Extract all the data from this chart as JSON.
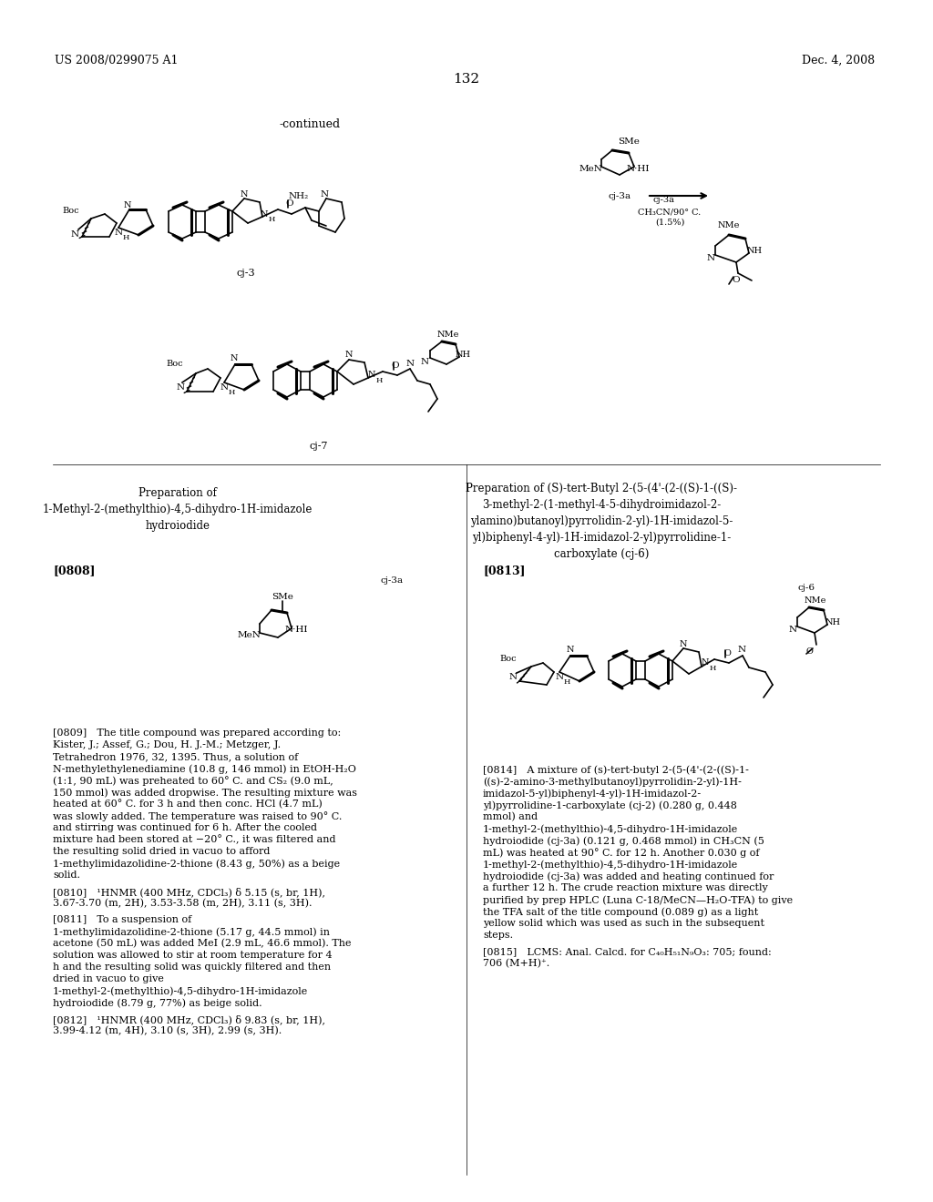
{
  "page_number": "132",
  "patent_number": "US 2008/0299075 A1",
  "patent_date": "Dec. 4, 2008",
  "background_color": "#ffffff",
  "text_color": "#000000",
  "continued_label": "-continued",
  "compound_labels": [
    "cj-3",
    "cj-7",
    "cj-3a",
    "cj-6"
  ],
  "reaction_condition": "CH₃CN/90° C.\n(1.5%)",
  "reaction_arrow_label": "cj-3a",
  "prep_left_title": "Preparation of\n1-Methyl-2-(methylthio)-4,5-dihydro-1H-imidazole\nhydroiodide",
  "prep_right_title": "Preparation of (S)-tert-Butyl 2-(5-(4'-(2-((S)-1-((S)-\n3-methyl-2-(1-methyl-4-5-dihydroimidazol-2-\nylamino)butanoyl)pyrrolidin-2-yl)-1H-imidazol-5-\nyl)biphenyl-4-yl)-1H-imidazol-2-yl)pyrrolidine-1-\ncarboxylate (cj-6)",
  "para_0808": "[0808]",
  "para_0813": "[0813]",
  "para_0809_text": "[0809] The title compound was prepared according to: Kister, J.; Assef, G.; Dou, H. J.-M.; Metzger, J. Tetrahedron 1976, 32, 1395. Thus, a solution of N-methylethylenediamine (10.8 g, 146 mmol) in EtOH-H₂O (1:1, 90 mL) was preheated to 60° C. and CS₂ (9.0 mL, 150 mmol) was added dropwise. The resulting mixture was heated at 60° C. for 3 h and then conc. HCl (4.7 mL) was slowly added. The temperature was raised to 90° C. and stirring was continued for 6 h. After the cooled mixture had been stored at −20° C., it was filtered and the resulting solid dried in vacuo to afford 1-methylimidazolidine-2-thione (8.43 g, 50%) as a beige solid.",
  "para_0810_text": "[0810] ¹HNMR (400 MHz, CDCl₃) δ 5.15 (s, br, 1H), 3.67-3.70 (m, 2H), 3.53-3.58 (m, 2H), 3.11 (s, 3H).",
  "para_0811_text": "[0811] To a suspension of 1-methylimidazolidine-2-thione (5.17 g, 44.5 mmol) in acetone (50 mL) was added MeI (2.9 mL, 46.6 mmol). The solution was allowed to stir at room temperature for 4 h and the resulting solid was quickly filtered and then dried in vacuo to give 1-methyl-2-(methylthio)-4,5-dihydro-1H-imidazole hydroiodide (8.79 g, 77%) as beige solid.",
  "para_0812_text": "[0812] ¹HNMR (400 MHz, CDCl₃) δ 9.83 (s, br, 1H), 3.99-4.12 (m, 4H), 3.10 (s, 3H), 2.99 (s, 3H).",
  "para_0814_text": "[0814] A mixture of (s)-tert-butyl 2-(5-(4'-(2-((S)-1-((s)-2-amino-3-methylbutanoyl)pyrrolidin-2-yl)-1H-imidazol-5-yl)biphenyl-4-yl)-1H-imidazol-2-yl)pyrrolidine-1-carboxylate (cj-2) (0.280 g, 0.448 mmol) and 1-methyl-2-(methylthio)-4,5-dihydro-1H-imidazole hydroiodide (cj-3a) (0.121 g, 0.468 mmol) in CH₃CN (5 mL) was heated at 90° C. for 12 h. Another 0.030 g of 1-methyl-2-(methylthio)-4,5-dihydro-1H-imidazole hydroiodide (cj-3a) was added and heating continued for a further 12 h. The crude reaction mixture was directly purified by prep HPLC (Luna C-18/MeCN—H₂O-TFA) to give the TFA salt of the title compound (0.089 g) as a light yellow solid which was used as such in the subsequent steps.",
  "para_0815_text": "[0815] LCMS: Anal. Calcd. for C₄₀H₅₁N₉O₃: 705; found: 706 (M+H)⁺."
}
